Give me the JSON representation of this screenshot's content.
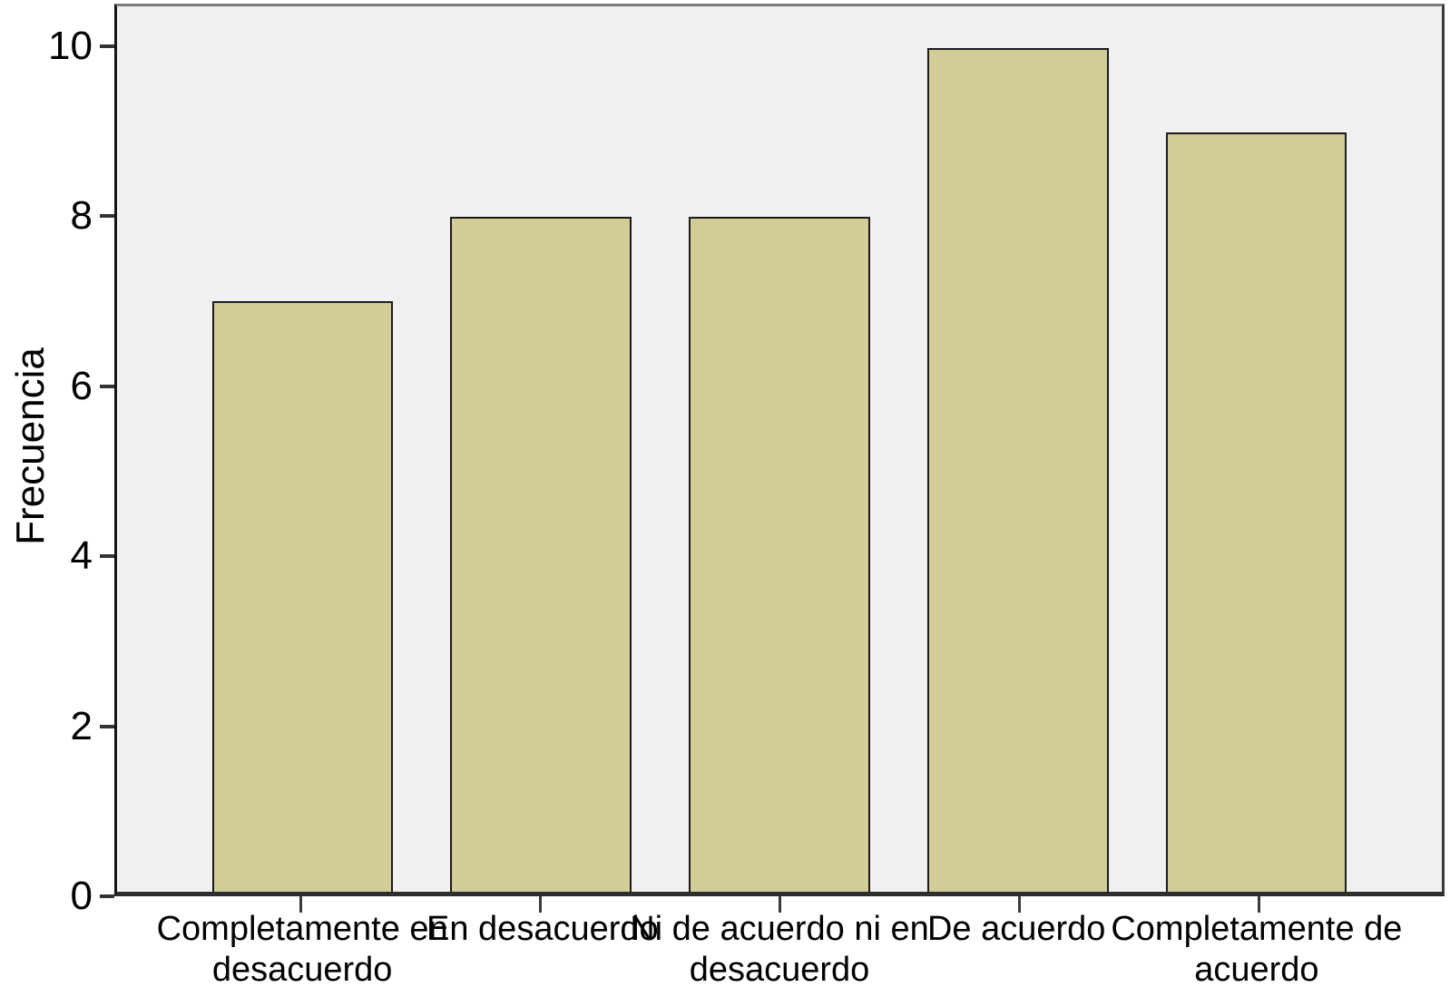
{
  "chart_data": {
    "type": "bar",
    "title": "",
    "xlabel": "",
    "ylabel": "Frecuencia",
    "categories": [
      "Completamente en\ndesacuerdo",
      "En desacuerdo",
      "Ni de acuerdo ni en\ndesacuerdo",
      "De acuerdo",
      "Completamente de\nacuerdo"
    ],
    "values": [
      7,
      8,
      8,
      10,
      9
    ],
    "yticks": [
      0,
      2,
      4,
      6,
      8,
      10
    ],
    "ylim": [
      0,
      10.5
    ],
    "grid": false,
    "legend_position": "none",
    "bar_color": "#D2CD96",
    "bar_border_color": "#1C1C1C",
    "plot_background": "#F0F0F0",
    "axis_color": "#2E2E2E",
    "text_color": "#000000"
  }
}
